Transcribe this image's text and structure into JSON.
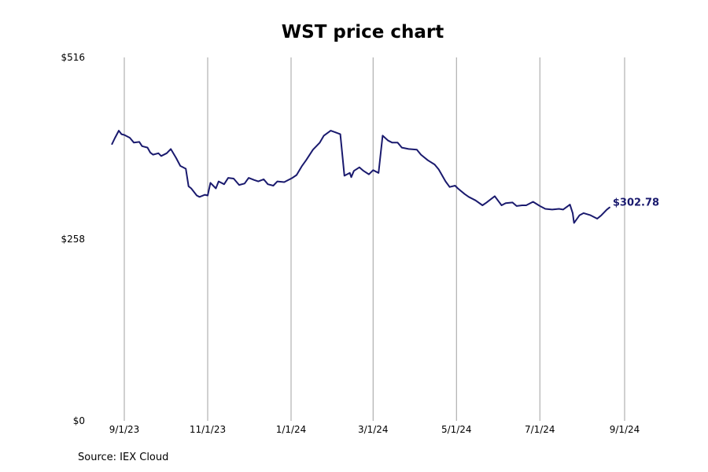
{
  "source_note": "Source: IEX Cloud",
  "chart_data": {
    "type": "line",
    "title": "WST price chart",
    "xlabel": "",
    "ylabel": "",
    "ylim": [
      0,
      516
    ],
    "x_ticks": [
      {
        "label": "9/1/23",
        "value": "2023-09-01"
      },
      {
        "label": "11/1/23",
        "value": "2023-11-01"
      },
      {
        "label": "1/1/24",
        "value": "2024-01-01"
      },
      {
        "label": "3/1/24",
        "value": "2024-03-01"
      },
      {
        "label": "5/1/24",
        "value": "2024-05-01"
      },
      {
        "label": "7/1/24",
        "value": "2024-07-01"
      },
      {
        "label": "9/1/24",
        "value": "2024-09-01"
      }
    ],
    "y_ticks": [
      {
        "label": "$516",
        "value": 516
      },
      {
        "label": "$258",
        "value": 258
      },
      {
        "label": "$0",
        "value": 0
      }
    ],
    "grid": {
      "x": true,
      "y": false
    },
    "line_color": "#1a1a6e",
    "last_value_label": "$302.78",
    "series": [
      {
        "x": [
          "2023-08-23",
          "2023-08-25",
          "2023-08-28",
          "2023-08-30",
          "2023-09-01",
          "2023-09-05",
          "2023-09-08",
          "2023-09-12",
          "2023-09-14",
          "2023-09-18",
          "2023-09-20",
          "2023-09-22",
          "2023-09-26",
          "2023-09-28",
          "2023-10-02",
          "2023-10-05",
          "2023-10-09",
          "2023-10-12",
          "2023-10-16",
          "2023-10-18",
          "2023-10-20",
          "2023-10-24",
          "2023-10-26",
          "2023-10-30",
          "2023-11-01",
          "2023-11-03",
          "2023-11-07",
          "2023-11-09",
          "2023-11-13",
          "2023-11-16",
          "2023-11-20",
          "2023-11-24",
          "2023-11-28",
          "2023-12-01",
          "2023-12-05",
          "2023-12-08",
          "2023-12-12",
          "2023-12-15",
          "2023-12-19",
          "2023-12-22",
          "2023-12-27",
          "2024-01-02",
          "2024-01-05",
          "2024-01-09",
          "2024-01-12",
          "2024-01-17",
          "2024-01-22",
          "2024-01-25",
          "2024-01-30",
          "2024-02-02",
          "2024-02-06",
          "2024-02-09",
          "2024-02-13",
          "2024-02-14",
          "2024-02-16",
          "2024-02-20",
          "2024-02-23",
          "2024-02-27",
          "2024-03-01",
          "2024-03-05",
          "2024-03-08",
          "2024-03-12",
          "2024-03-15",
          "2024-03-19",
          "2024-03-22",
          "2024-03-27",
          "2024-04-02",
          "2024-04-05",
          "2024-04-10",
          "2024-04-15",
          "2024-04-18",
          "2024-04-23",
          "2024-04-26",
          "2024-04-30",
          "2024-05-02",
          "2024-05-07",
          "2024-05-10",
          "2024-05-15",
          "2024-05-20",
          "2024-05-23",
          "2024-05-29",
          "2024-06-03",
          "2024-06-06",
          "2024-06-11",
          "2024-06-14",
          "2024-06-18",
          "2024-06-21",
          "2024-06-26",
          "2024-07-01",
          "2024-07-05",
          "2024-07-10",
          "2024-07-15",
          "2024-07-18",
          "2024-07-23",
          "2024-07-25",
          "2024-07-26",
          "2024-07-30",
          "2024-08-02",
          "2024-08-07",
          "2024-08-12",
          "2024-08-15",
          "2024-08-19",
          "2024-08-21"
        ],
        "values": [
          393,
          401,
          412,
          407,
          406,
          402,
          395,
          396,
          390,
          388,
          381,
          378,
          380,
          376,
          380,
          386,
          373,
          362,
          358,
          333,
          330,
          320,
          318,
          321,
          320,
          338,
          330,
          340,
          336,
          345,
          344,
          335,
          337,
          345,
          342,
          340,
          343,
          336,
          334,
          340,
          339,
          345,
          349,
          362,
          370,
          385,
          395,
          405,
          412,
          410,
          407,
          348,
          352,
          346,
          355,
          360,
          355,
          350,
          356,
          352,
          405,
          398,
          395,
          395,
          388,
          386,
          385,
          378,
          370,
          364,
          357,
          340,
          332,
          334,
          330,
          322,
          318,
          313,
          306,
          310,
          319,
          306,
          309,
          310,
          305,
          306,
          306,
          311,
          305,
          301,
          300,
          301,
          300,
          307,
          295,
          281,
          292,
          295,
          292,
          287,
          292,
          300,
          303
        ]
      }
    ]
  }
}
